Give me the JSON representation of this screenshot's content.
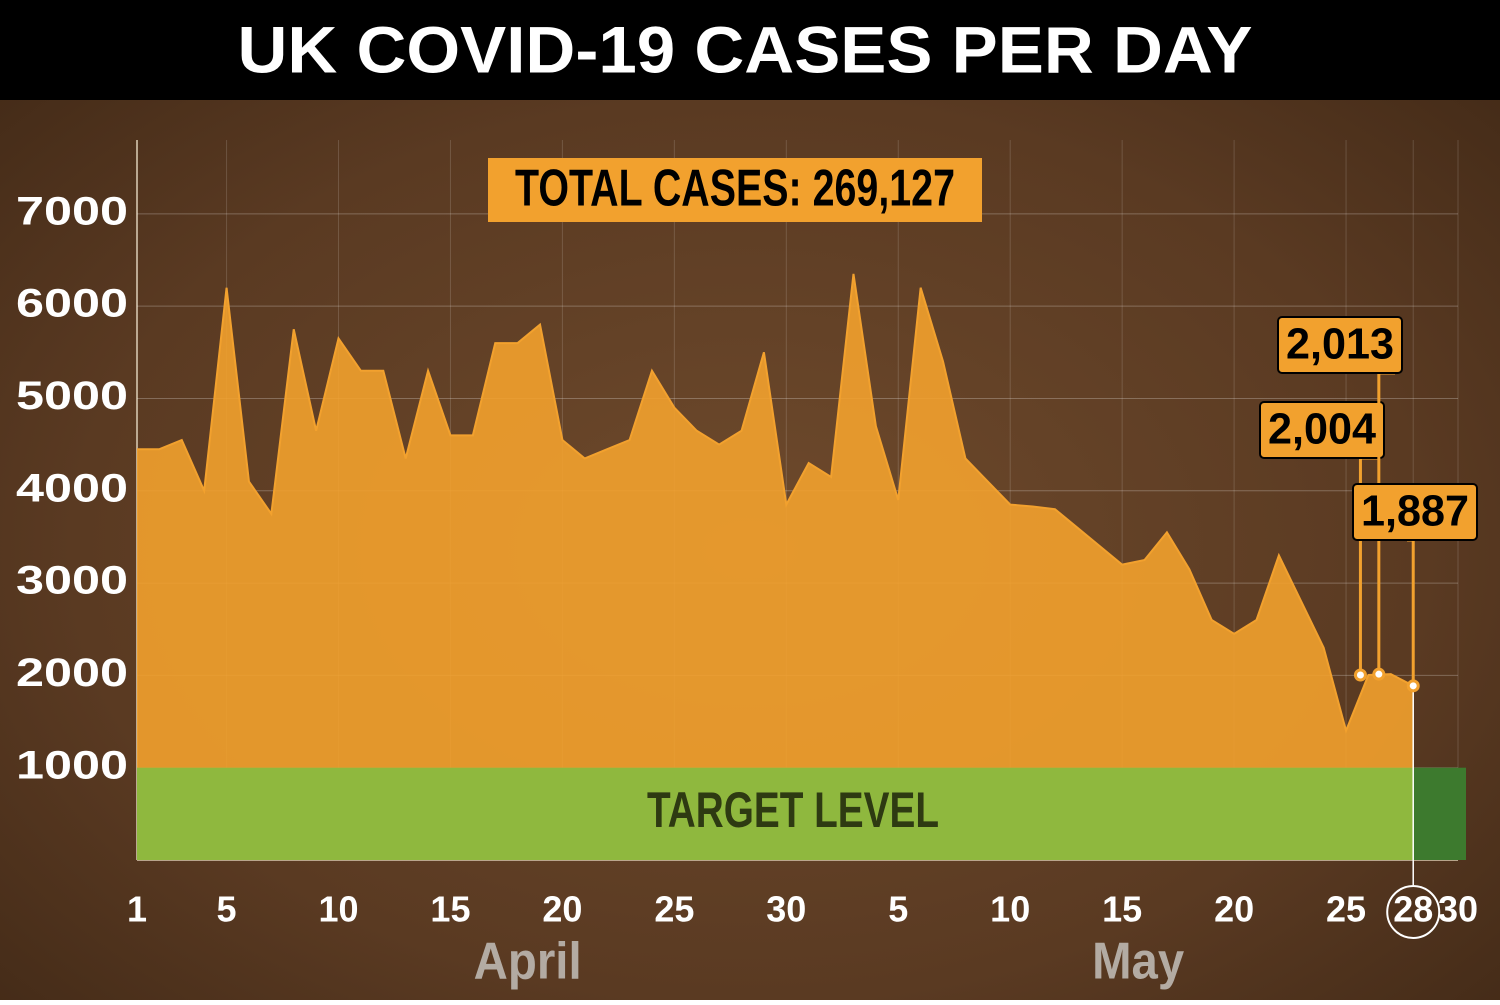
{
  "chart_data": {
    "type": "area",
    "title": "UK COVID-19 CASES PER DAY",
    "annotation": "TOTAL CASES: 269,127",
    "categories": [
      "1",
      null,
      null,
      null,
      "5",
      null,
      null,
      null,
      null,
      "10",
      null,
      null,
      null,
      null,
      "15",
      null,
      null,
      null,
      null,
      "20",
      null,
      null,
      null,
      null,
      "25",
      null,
      null,
      null,
      null,
      "30",
      null,
      null,
      null,
      null,
      "5",
      null,
      null,
      null,
      null,
      "10",
      null,
      null,
      null,
      null,
      "15",
      null,
      null,
      null,
      null,
      "20",
      null,
      null,
      null,
      null,
      "25",
      null,
      null,
      "28",
      null,
      "30"
    ],
    "month_labels": [
      "April",
      "May"
    ],
    "values": [
      4450,
      4450,
      4550,
      4000,
      6200,
      4100,
      3750,
      5750,
      4650,
      5650,
      5300,
      5300,
      4350,
      5300,
      4600,
      4600,
      5600,
      5600,
      5800,
      4550,
      4350,
      4450,
      4550,
      5300,
      4900,
      4650,
      4500,
      4650,
      5500,
      3850,
      4300,
      4150,
      6350,
      4700,
      3900,
      6200,
      5400,
      4350,
      4100,
      3850,
      3830,
      3800,
      3600,
      3400,
      3200,
      3250,
      3550,
      3150,
      2600,
      2450,
      2600,
      3300,
      2800,
      2300,
      1400,
      2004,
      2013,
      1887,
      null,
      null
    ],
    "value_labels": [
      null,
      null,
      null,
      null,
      null,
      null,
      null,
      null,
      null,
      null,
      null,
      null,
      null,
      null,
      null,
      null,
      null,
      null,
      null,
      null,
      null,
      null,
      null,
      null,
      null,
      null,
      null,
      null,
      null,
      null,
      null,
      null,
      null,
      null,
      null,
      null,
      null,
      null,
      null,
      null,
      null,
      null,
      null,
      null,
      null,
      null,
      null,
      null,
      null,
      null,
      null,
      null,
      null,
      null,
      null,
      "2,004",
      "2,013",
      "1,887",
      null,
      null
    ],
    "color": "#f2a12e",
    "target": {
      "label": "TARGET LEVEL",
      "value": 1000,
      "color": "#8fb83e"
    },
    "ylim": [
      0,
      7800
    ],
    "yticks": [
      1000,
      2000,
      3000,
      4000,
      5000,
      6000,
      7000
    ],
    "grid": true
  }
}
